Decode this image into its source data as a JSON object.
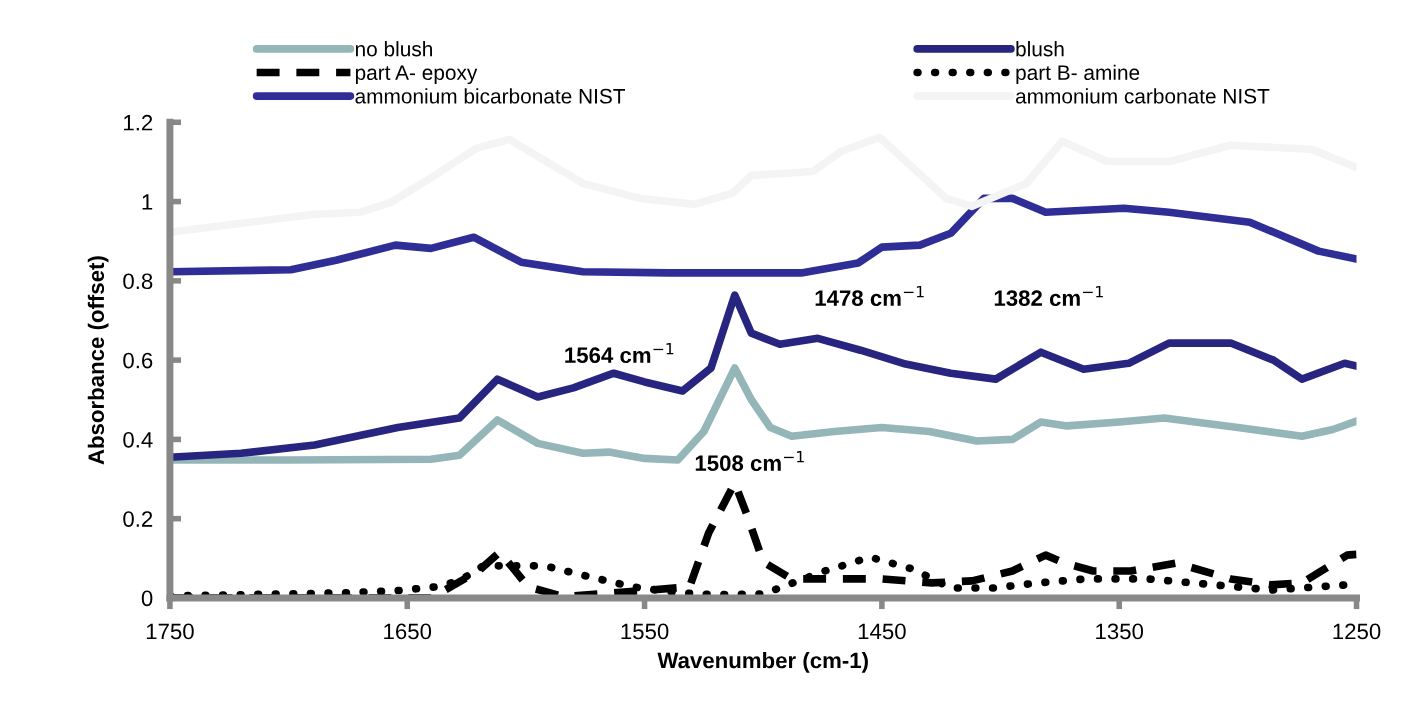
{
  "chart_data": {
    "type": "line",
    "xlabel": "Wavenumber (cm-1)",
    "ylabel": "Absorbance (offset)",
    "xlim": [
      1750,
      1250
    ],
    "xticks": [
      1750,
      1650,
      1550,
      1450,
      1350,
      1250
    ],
    "ylim": [
      0,
      1.2
    ],
    "yticks": [
      0,
      0.2,
      0.4,
      0.6,
      0.8,
      1,
      1.2
    ],
    "grid": false,
    "legend": "top",
    "marker": "none",
    "annotations": [
      "1564 cm$^{−1}$",
      "1508 cm$^{−1}$",
      "1478 cm$^{−1}$",
      "1382 cm$^{−1}$"
    ],
    "series": [
      {
        "name": "no blush",
        "color": "#95b6b8",
        "line_style": "solid",
        "x": [
          1750,
          1700,
          1640,
          1628,
          1612,
          1595,
          1576,
          1565,
          1550,
          1536,
          1525,
          1512,
          1505,
          1497,
          1488,
          1470,
          1450,
          1430,
          1410,
          1395,
          1383,
          1372,
          1350,
          1331,
          1300,
          1273,
          1260,
          1250
        ],
        "values": [
          0.348,
          0.348,
          0.35,
          0.36,
          0.449,
          0.39,
          0.365,
          0.368,
          0.352,
          0.348,
          0.42,
          0.58,
          0.5,
          0.43,
          0.408,
          0.42,
          0.43,
          0.42,
          0.396,
          0.4,
          0.444,
          0.434,
          0.444,
          0.454,
          0.43,
          0.408,
          0.425,
          0.446
        ]
      },
      {
        "name": "blush",
        "color": "#27257f",
        "line_style": "solid",
        "x": [
          1750,
          1720,
          1689,
          1654,
          1628,
          1612,
          1595,
          1580,
          1563,
          1550,
          1534,
          1522,
          1512,
          1505,
          1493,
          1477,
          1459,
          1440,
          1421,
          1402,
          1383,
          1365,
          1346,
          1329,
          1303,
          1285,
          1273,
          1255,
          1250
        ],
        "values": [
          0.355,
          0.365,
          0.386,
          0.43,
          0.454,
          0.552,
          0.507,
          0.53,
          0.567,
          0.545,
          0.522,
          0.58,
          0.764,
          0.668,
          0.64,
          0.655,
          0.625,
          0.59,
          0.567,
          0.552,
          0.62,
          0.577,
          0.592,
          0.643,
          0.643,
          0.6,
          0.552,
          0.592,
          0.585
        ]
      },
      {
        "name": "part A- epoxy",
        "color": "#000000",
        "line_style": "dashed",
        "x": [
          1750,
          1640,
          1620,
          1611,
          1599,
          1584,
          1552,
          1531,
          1523,
          1512,
          1507,
          1500,
          1488,
          1450,
          1429,
          1412,
          1395,
          1381,
          1373,
          1361,
          1345,
          1326,
          1303,
          1286,
          1273,
          1254,
          1250
        ],
        "values": [
          0,
          0,
          0.068,
          0.116,
          0.028,
          0.003,
          0.018,
          0.028,
          0.164,
          0.29,
          0.212,
          0.091,
          0.048,
          0.048,
          0.038,
          0.043,
          0.068,
          0.108,
          0.088,
          0.068,
          0.068,
          0.088,
          0.048,
          0.033,
          0.038,
          0.108,
          0.11
        ]
      },
      {
        "name": "part B- amine",
        "color": "#000000",
        "line_style": "dotted",
        "x": [
          1750,
          1675,
          1655,
          1638,
          1628,
          1618,
          1608,
          1592,
          1573,
          1555,
          1536,
          1520,
          1500,
          1474,
          1455,
          1437,
          1421,
          1403,
          1384,
          1364,
          1338,
          1319,
          1286,
          1254,
          1250
        ],
        "values": [
          0.005,
          0.013,
          0.018,
          0.028,
          0.043,
          0.081,
          0.081,
          0.081,
          0.053,
          0.028,
          0.013,
          0.008,
          0.01,
          0.068,
          0.103,
          0.073,
          0.025,
          0.025,
          0.038,
          0.048,
          0.048,
          0.038,
          0.02,
          0.033,
          0.033
        ]
      },
      {
        "name": "ammonium bicarbonate NIST",
        "color": "#2e2e96",
        "line_style": "solid",
        "x": [
          1750,
          1699,
          1680,
          1655,
          1640,
          1622,
          1602,
          1576,
          1540,
          1510,
          1484,
          1460,
          1450,
          1434,
          1421,
          1407,
          1395,
          1381,
          1348,
          1329,
          1295,
          1266,
          1250
        ],
        "values": [
          0.823,
          0.828,
          0.852,
          0.89,
          0.882,
          0.91,
          0.847,
          0.823,
          0.82,
          0.82,
          0.82,
          0.845,
          0.885,
          0.89,
          0.92,
          1.008,
          1.008,
          0.973,
          0.983,
          0.973,
          0.948,
          0.875,
          0.855
        ]
      },
      {
        "name": "ammonium carbonate NIST",
        "color": "#f4f4f4",
        "line_style": "solid",
        "x": [
          1750,
          1689,
          1670,
          1657,
          1641,
          1621,
          1607,
          1595,
          1576,
          1552,
          1529,
          1513,
          1505,
          1479,
          1467,
          1451,
          1437,
          1423,
          1412,
          1389,
          1374,
          1355,
          1329,
          1303,
          1269,
          1250
        ],
        "values": [
          0.923,
          0.968,
          0.973,
          0.998,
          1.056,
          1.134,
          1.157,
          1.114,
          1.046,
          1.008,
          0.993,
          1.021,
          1.066,
          1.076,
          1.127,
          1.162,
          1.086,
          1.008,
          0.988,
          1.046,
          1.152,
          1.101,
          1.101,
          1.142,
          1.132,
          1.086
        ]
      }
    ]
  }
}
